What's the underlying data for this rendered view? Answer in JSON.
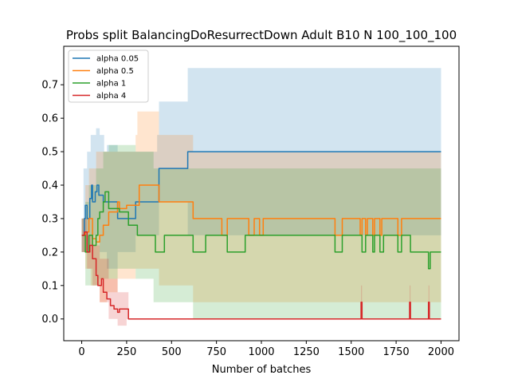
{
  "chart_data": {
    "type": "line",
    "title": "Probs split BalancingDoResurrectDown Adult B10 N 100_100_100",
    "xlabel": "Number of batches",
    "ylabel": "",
    "xlim": [
      -100,
      2100
    ],
    "ylim": [
      -0.065,
      0.815
    ],
    "xticks": [
      0,
      250,
      500,
      750,
      1000,
      1250,
      1500,
      1750,
      2000
    ],
    "yticks": [
      0.0,
      0.1,
      0.2,
      0.3,
      0.4,
      0.5,
      0.6,
      0.7
    ],
    "grid": false,
    "legend_position": "top-left",
    "series": [
      {
        "name": "alpha 0.05",
        "color": "#1f77b4",
        "fill_opacity": 0.2,
        "line": [
          [
            0,
            0.25
          ],
          [
            15,
            0.3
          ],
          [
            20,
            0.34
          ],
          [
            30,
            0.3
          ],
          [
            45,
            0.36
          ],
          [
            55,
            0.4
          ],
          [
            60,
            0.35
          ],
          [
            75,
            0.38
          ],
          [
            85,
            0.4
          ],
          [
            95,
            0.37
          ],
          [
            120,
            0.35
          ],
          [
            200,
            0.3
          ],
          [
            300,
            0.35
          ],
          [
            420,
            0.35
          ],
          [
            430,
            0.45
          ],
          [
            580,
            0.45
          ],
          [
            590,
            0.5
          ],
          [
            2000,
            0.5
          ]
        ],
        "band_upper": [
          [
            0,
            0.3
          ],
          [
            10,
            0.45
          ],
          [
            30,
            0.5
          ],
          [
            50,
            0.55
          ],
          [
            80,
            0.57
          ],
          [
            100,
            0.55
          ],
          [
            125,
            0.5
          ],
          [
            140,
            0.52
          ],
          [
            200,
            0.5
          ],
          [
            300,
            0.5
          ],
          [
            420,
            0.55
          ],
          [
            430,
            0.65
          ],
          [
            580,
            0.65
          ],
          [
            590,
            0.75
          ],
          [
            2000,
            0.75
          ]
        ],
        "band_lower": [
          [
            0,
            0.2
          ],
          [
            20,
            0.2
          ],
          [
            50,
            0.25
          ],
          [
            100,
            0.2
          ],
          [
            140,
            0.15
          ],
          [
            200,
            0.2
          ],
          [
            300,
            0.25
          ],
          [
            420,
            0.25
          ],
          [
            430,
            0.35
          ],
          [
            580,
            0.35
          ],
          [
            590,
            0.25
          ],
          [
            2000,
            0.25
          ]
        ]
      },
      {
        "name": "alpha 0.5",
        "color": "#ff7f0e",
        "fill_opacity": 0.2,
        "line": [
          [
            0,
            0.25
          ],
          [
            20,
            0.26
          ],
          [
            40,
            0.3
          ],
          [
            60,
            0.24
          ],
          [
            80,
            0.23
          ],
          [
            100,
            0.25
          ],
          [
            120,
            0.28
          ],
          [
            150,
            0.32
          ],
          [
            200,
            0.35
          ],
          [
            210,
            0.33
          ],
          [
            250,
            0.34
          ],
          [
            310,
            0.34
          ],
          [
            320,
            0.4
          ],
          [
            420,
            0.4
          ],
          [
            430,
            0.35
          ],
          [
            610,
            0.35
          ],
          [
            620,
            0.3
          ],
          [
            770,
            0.3
          ],
          [
            780,
            0.25
          ],
          [
            800,
            0.25
          ],
          [
            810,
            0.3
          ],
          [
            920,
            0.3
          ],
          [
            930,
            0.25
          ],
          [
            950,
            0.25
          ],
          [
            960,
            0.3
          ],
          [
            980,
            0.3
          ],
          [
            990,
            0.25
          ],
          [
            1000,
            0.25
          ],
          [
            1010,
            0.3
          ],
          [
            1400,
            0.3
          ],
          [
            1410,
            0.25
          ],
          [
            1440,
            0.25
          ],
          [
            1450,
            0.3
          ],
          [
            1540,
            0.3
          ],
          [
            1550,
            0.25
          ],
          [
            1560,
            0.3
          ],
          [
            1580,
            0.25
          ],
          [
            1590,
            0.3
          ],
          [
            1620,
            0.25
          ],
          [
            1630,
            0.3
          ],
          [
            1660,
            0.25
          ],
          [
            1670,
            0.3
          ],
          [
            1750,
            0.3
          ],
          [
            1760,
            0.25
          ],
          [
            1780,
            0.3
          ],
          [
            2000,
            0.3
          ]
        ],
        "band_upper": [
          [
            0,
            0.3
          ],
          [
            20,
            0.4
          ],
          [
            40,
            0.45
          ],
          [
            80,
            0.5
          ],
          [
            120,
            0.5
          ],
          [
            200,
            0.5
          ],
          [
            300,
            0.55
          ],
          [
            310,
            0.62
          ],
          [
            420,
            0.62
          ],
          [
            430,
            0.55
          ],
          [
            610,
            0.55
          ],
          [
            620,
            0.5
          ],
          [
            2000,
            0.5
          ]
        ],
        "band_lower": [
          [
            0,
            0.2
          ],
          [
            20,
            0.15
          ],
          [
            50,
            0.1
          ],
          [
            100,
            0.05
          ],
          [
            140,
            0.08
          ],
          [
            200,
            0.12
          ],
          [
            300,
            0.15
          ],
          [
            420,
            0.15
          ],
          [
            430,
            0.1
          ],
          [
            610,
            0.1
          ],
          [
            620,
            0.05
          ],
          [
            2000,
            0.05
          ]
        ]
      },
      {
        "name": "alpha 1",
        "color": "#2ca02c",
        "fill_opacity": 0.2,
        "line": [
          [
            0,
            0.25
          ],
          [
            20,
            0.2
          ],
          [
            40,
            0.25
          ],
          [
            60,
            0.22
          ],
          [
            80,
            0.25
          ],
          [
            90,
            0.3
          ],
          [
            100,
            0.32
          ],
          [
            120,
            0.35
          ],
          [
            130,
            0.38
          ],
          [
            150,
            0.33
          ],
          [
            200,
            0.33
          ],
          [
            210,
            0.32
          ],
          [
            250,
            0.32
          ],
          [
            260,
            0.28
          ],
          [
            300,
            0.28
          ],
          [
            310,
            0.25
          ],
          [
            400,
            0.25
          ],
          [
            410,
            0.2
          ],
          [
            450,
            0.2
          ],
          [
            460,
            0.25
          ],
          [
            610,
            0.25
          ],
          [
            620,
            0.2
          ],
          [
            680,
            0.2
          ],
          [
            690,
            0.25
          ],
          [
            800,
            0.25
          ],
          [
            810,
            0.2
          ],
          [
            900,
            0.2
          ],
          [
            910,
            0.25
          ],
          [
            1400,
            0.25
          ],
          [
            1410,
            0.2
          ],
          [
            1440,
            0.2
          ],
          [
            1450,
            0.25
          ],
          [
            1550,
            0.25
          ],
          [
            1560,
            0.2
          ],
          [
            1580,
            0.25
          ],
          [
            1620,
            0.2
          ],
          [
            1630,
            0.25
          ],
          [
            1660,
            0.2
          ],
          [
            1680,
            0.25
          ],
          [
            1750,
            0.25
          ],
          [
            1760,
            0.2
          ],
          [
            1780,
            0.25
          ],
          [
            1820,
            0.25
          ],
          [
            1830,
            0.2
          ],
          [
            1840,
            0.2
          ],
          [
            1850,
            0.2
          ],
          [
            1920,
            0.2
          ],
          [
            1930,
            0.15
          ],
          [
            1940,
            0.2
          ],
          [
            2000,
            0.2
          ]
        ],
        "band_upper": [
          [
            0,
            0.3
          ],
          [
            20,
            0.35
          ],
          [
            40,
            0.4
          ],
          [
            80,
            0.45
          ],
          [
            120,
            0.5
          ],
          [
            150,
            0.52
          ],
          [
            200,
            0.52
          ],
          [
            300,
            0.5
          ],
          [
            400,
            0.45
          ],
          [
            610,
            0.45
          ],
          [
            620,
            0.45
          ],
          [
            2000,
            0.45
          ]
        ],
        "band_lower": [
          [
            0,
            0.2
          ],
          [
            20,
            0.1
          ],
          [
            50,
            0.1
          ],
          [
            100,
            0.12
          ],
          [
            140,
            0.12
          ],
          [
            200,
            0.15
          ],
          [
            300,
            0.12
          ],
          [
            400,
            0.05
          ],
          [
            610,
            0.05
          ],
          [
            620,
            0.0
          ],
          [
            2000,
            0.0
          ]
        ]
      },
      {
        "name": "alpha 4",
        "color": "#d62728",
        "fill_opacity": 0.2,
        "line": [
          [
            0,
            0.25
          ],
          [
            15,
            0.26
          ],
          [
            30,
            0.2
          ],
          [
            45,
            0.22
          ],
          [
            60,
            0.18
          ],
          [
            80,
            0.13
          ],
          [
            90,
            0.1
          ],
          [
            110,
            0.12
          ],
          [
            120,
            0.08
          ],
          [
            140,
            0.06
          ],
          [
            160,
            0.04
          ],
          [
            180,
            0.03
          ],
          [
            200,
            0.02
          ],
          [
            210,
            0.03
          ],
          [
            250,
            0.03
          ],
          [
            260,
            0.0
          ],
          [
            1550,
            0.0
          ],
          [
            1555,
            0.05
          ],
          [
            1560,
            0.0
          ],
          [
            1820,
            0.0
          ],
          [
            1825,
            0.05
          ],
          [
            1830,
            0.0
          ],
          [
            1925,
            0.0
          ],
          [
            1930,
            0.05
          ],
          [
            1935,
            0.0
          ],
          [
            2000,
            0.0
          ]
        ],
        "band_upper": [
          [
            0,
            0.3
          ],
          [
            30,
            0.25
          ],
          [
            60,
            0.22
          ],
          [
            100,
            0.18
          ],
          [
            150,
            0.12
          ],
          [
            200,
            0.08
          ],
          [
            250,
            0.08
          ],
          [
            260,
            0.0
          ],
          [
            1550,
            0.0
          ],
          [
            1555,
            0.1
          ],
          [
            1560,
            0.0
          ],
          [
            1820,
            0.0
          ],
          [
            1825,
            0.1
          ],
          [
            1830,
            0.0
          ],
          [
            1925,
            0.0
          ],
          [
            1930,
            0.1
          ],
          [
            1935,
            0.0
          ],
          [
            2000,
            0.0
          ]
        ],
        "band_lower": [
          [
            0,
            0.2
          ],
          [
            30,
            0.15
          ],
          [
            60,
            0.1
          ],
          [
            100,
            0.05
          ],
          [
            150,
            0.0
          ],
          [
            200,
            -0.02
          ],
          [
            250,
            0.0
          ],
          [
            2000,
            0.0
          ]
        ]
      }
    ]
  }
}
